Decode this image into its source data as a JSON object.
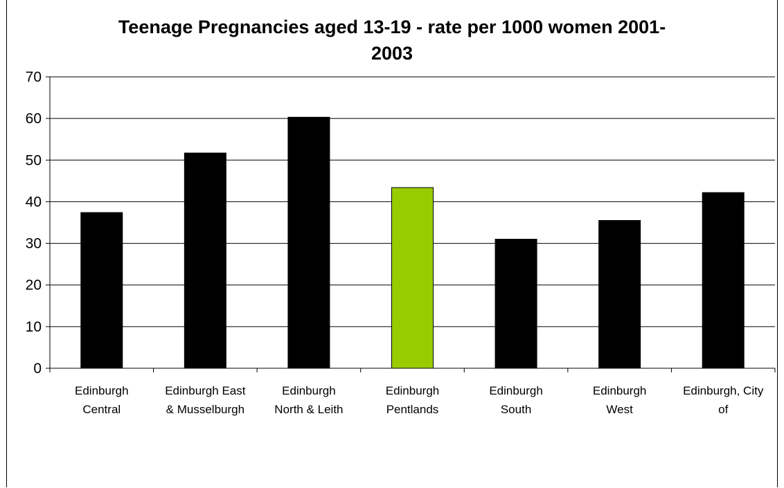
{
  "chart_data": {
    "type": "bar",
    "title_lines": [
      "Teenage Pregnancies aged 13-19 - rate per 1000 women 2001-",
      "2003"
    ],
    "categories": [
      [
        "Edinburgh",
        "Central"
      ],
      [
        "Edinburgh East",
        "& Musselburgh"
      ],
      [
        "Edinburgh",
        "North & Leith"
      ],
      [
        "Edinburgh",
        "Pentlands"
      ],
      [
        "Edinburgh",
        "South"
      ],
      [
        "Edinburgh",
        "West"
      ],
      [
        "Edinburgh, City",
        "of"
      ]
    ],
    "values": [
      37.4,
      51.7,
      60.3,
      43.4,
      31.0,
      35.5,
      42.2
    ],
    "bar_colors": [
      "#000000",
      "#000000",
      "#000000",
      "#99cc00",
      "#000000",
      "#000000",
      "#000000"
    ],
    "ylim": [
      0,
      70
    ],
    "yticks": [
      0,
      10,
      20,
      30,
      40,
      50,
      60,
      70
    ],
    "grid": true,
    "legend": "none"
  }
}
